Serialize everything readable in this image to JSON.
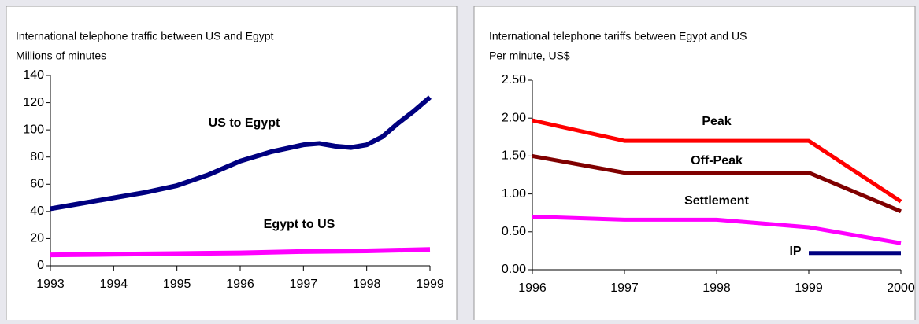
{
  "chart_data": [
    {
      "type": "line",
      "title": "International telephone traffic between US and Egypt",
      "subtitle": "Millions of minutes",
      "xlim": [
        1993,
        1999
      ],
      "xticks": [
        1993,
        1994,
        1995,
        1996,
        1997,
        1998,
        1999
      ],
      "ylim": [
        0,
        140
      ],
      "yticks": [
        0,
        20,
        40,
        60,
        80,
        100,
        120,
        140
      ],
      "series": [
        {
          "name": "US to Egypt",
          "color": "#000080",
          "x": [
            1993,
            1993.5,
            1994,
            1994.5,
            1995,
            1995.5,
            1996,
            1996.5,
            1997,
            1997.25,
            1997.5,
            1997.75,
            1998,
            1998.25,
            1998.5,
            1998.75,
            1999
          ],
          "values": [
            42,
            46,
            50,
            54,
            59,
            67,
            77,
            84,
            89,
            90,
            88,
            87,
            89,
            95,
            105,
            114,
            124
          ]
        },
        {
          "name": "Egypt to US",
          "color": "#ff00ff",
          "x": [
            1993,
            1994,
            1995,
            1996,
            1997,
            1998,
            1999
          ],
          "values": [
            8,
            8.5,
            9,
            9.5,
            10.5,
            11,
            12
          ]
        }
      ]
    },
    {
      "type": "line",
      "title": "International telephone tariffs between Egypt and US",
      "subtitle": "Per minute, US$",
      "xlim": [
        1996,
        2000
      ],
      "xticks": [
        1996,
        1997,
        1998,
        1999,
        2000
      ],
      "ylim": [
        0,
        2.5
      ],
      "yticks": [
        {
          "value": 0,
          "label": "0.00"
        },
        {
          "value": 0.5,
          "label": "0.50"
        },
        {
          "value": 1,
          "label": "1.00"
        },
        {
          "value": 1.5,
          "label": "1.50"
        },
        {
          "value": 2,
          "label": "2.00"
        },
        {
          "value": 2.5,
          "label": "2.50"
        }
      ],
      "series": [
        {
          "name": "Peak",
          "color": "#ff0000",
          "x": [
            1996,
            1997,
            1998,
            1999,
            2000
          ],
          "values": [
            1.97,
            1.7,
            1.7,
            1.7,
            0.9
          ]
        },
        {
          "name": "Off-Peak",
          "color": "#800000",
          "x": [
            1996,
            1997,
            1998,
            1999,
            2000
          ],
          "values": [
            1.5,
            1.28,
            1.28,
            1.28,
            0.77
          ]
        },
        {
          "name": "Settlement",
          "color": "#ff00ff",
          "x": [
            1996,
            1997,
            1998,
            1999,
            2000
          ],
          "values": [
            0.7,
            0.66,
            0.66,
            0.56,
            0.35
          ]
        },
        {
          "name": "IP",
          "color": "#000080",
          "x": [
            1999,
            2000
          ],
          "values": [
            0.22,
            0.22
          ]
        }
      ]
    }
  ]
}
